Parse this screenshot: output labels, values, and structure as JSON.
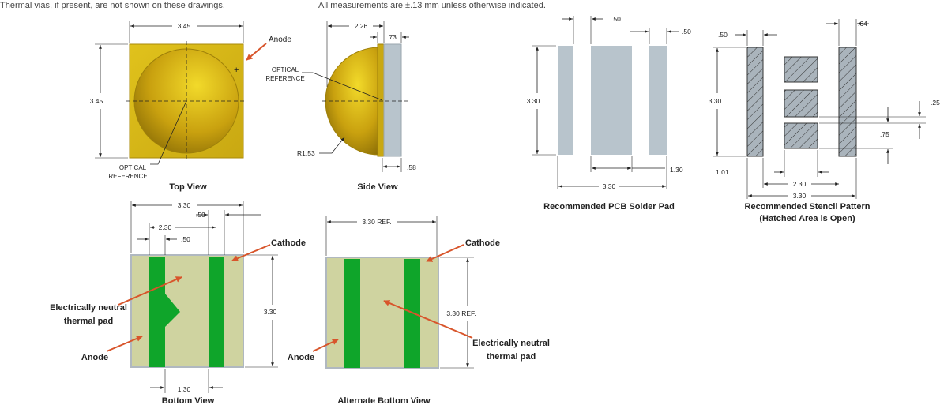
{
  "notes": [
    "Thermal vias, if present, are not shown on these drawings.",
    "All measurements are ±.13 mm unless otherwise indicated."
  ],
  "top_view": {
    "caption": "Top View",
    "dims": [
      "3.45",
      "3.45"
    ],
    "anode": "Anode",
    "plus": "+",
    "optical_reference": [
      "OPTICAL",
      "REFERENCE"
    ]
  },
  "side_view": {
    "caption": "Side View",
    "dims": [
      "2.26",
      ".73",
      ".58"
    ],
    "radius": "R1.53",
    "optical_reference": [
      "OPTICAL",
      "REFERENCE"
    ]
  },
  "pcb_pad": {
    "caption": "Recommended PCB Solder Pad",
    "dims": [
      ".50",
      ".50",
      "3.30",
      "1.30",
      "3.30"
    ]
  },
  "stencil": {
    "caption": [
      "Recommended Stencil Pattern",
      "(Hatched Area is Open)"
    ],
    "dims": [
      ".50",
      ".64",
      "3.30",
      ".25",
      ".75",
      "1.01",
      "2.30",
      "3.30"
    ]
  },
  "bottom_view": {
    "caption": "Bottom View",
    "dims": [
      "3.30",
      ".50",
      "2.30",
      ".50",
      "3.30",
      "1.30"
    ],
    "cathode": "Cathode",
    "thermal_pad": [
      "Electrically neutral",
      "thermal pad"
    ],
    "anode": "Anode"
  },
  "alternate_bottom_view": {
    "caption": "Alternate Bottom View",
    "dims": [
      "3.30 REF.",
      "3.30 REF."
    ],
    "cathode": "Cathode",
    "thermal_pad": [
      "Electrically neutral",
      "thermal pad"
    ],
    "anode": "Anode"
  }
}
